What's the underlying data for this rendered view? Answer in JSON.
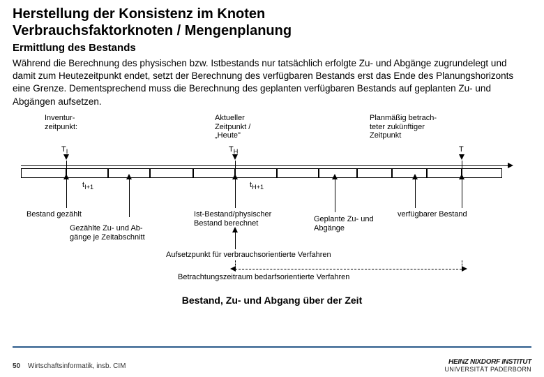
{
  "title_line1": "Herstellung der Konsistenz im Knoten",
  "title_line2": "Verbrauchsfaktorknoten / Mengenplanung",
  "subtitle": "Ermittlung des Bestands",
  "body": "Während die Berechnung des physischen bzw. Istbestands nur tatsächlich erfolgte Zu- und Abgänge zugrundelegt und damit zum Heutezeitpunkt endet, setzt der Berechnung des verfügbaren Bestands erst das Ende des Planungshorizonts eine Grenze. Dementsprechend muss die Berechnung des geplanten verfügbaren Bestands auf geplanten Zu- und Abgängen aufsetzen.",
  "caption": "Bestand, Zu- und Abgang über der Zeit",
  "diagram": {
    "top_labels": {
      "inventur": "Inventur-\nzeitpunkt:",
      "aktueller": "Aktueller\nZeitpunkt /\n„Heute\"",
      "plan": "Planmäßig betrach-\nteter zukünftiger\nZeitpunkt"
    },
    "point_labels": {
      "ti": "T",
      "ti_sub": "I",
      "th": "T",
      "th_sub": "H",
      "t": "T"
    },
    "interval_labels": {
      "li1": "t",
      "li1_sub": "I+1",
      "lh1": "t",
      "lh1_sub": "H+1"
    },
    "bottom_labels": {
      "bestand_gezahlt": "Bestand gezählt",
      "gezahlte": "Gezählte Zu- und Ab-\ngänge je Zeitabschnitt",
      "ist_bestand": "Ist-Bestand/physischer\nBestand berechnet",
      "geplante": "Geplante Zu- und\nAbgänge",
      "verfugbarer": "verfügbarer Bestand"
    },
    "aufsetzpunkt": "Aufsetzpunkt für verbrauchsorientierte Verfahren",
    "betrachtung": "Betrachtungszeitraum bedarfsorientierte Verfahren"
  },
  "footer": {
    "page": "50",
    "text": "Wirtschaftsinformatik, insb. CIM"
  },
  "logo": {
    "l1": "HEINZ NIXDORF INSTITUT",
    "l2": "UNIVERSITÄT PADERBORN"
  }
}
